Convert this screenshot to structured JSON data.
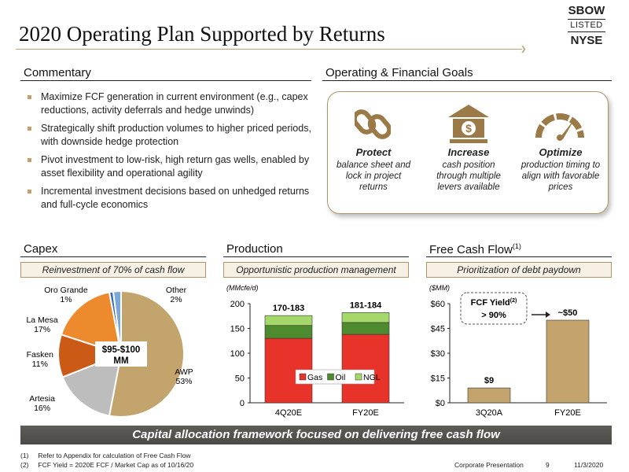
{
  "page_title": "2020 Operating Plan Supported by Returns",
  "logo": {
    "line1": "SBOW",
    "line2": "LISTED",
    "line3": "NYSE"
  },
  "commentary": {
    "heading": "Commentary",
    "bullets": [
      "Maximize FCF generation in current environment (e.g., capex reductions, activity deferrals and hedge unwinds)",
      "Strategically shift production volumes to higher priced periods, with downside hedge protection",
      "Pivot investment to low-risk, high return gas wells, enabled by asset flexibility and operational agility",
      "Incremental investment decisions based on unhedged returns and full-cycle economics"
    ]
  },
  "goals": {
    "heading": "Operating & Financial Goals",
    "items": [
      {
        "title": "Protect",
        "text": "balance sheet and lock in project returns",
        "icon": "chain-link-icon"
      },
      {
        "title": "Increase",
        "text": "cash position through multiple levers available",
        "icon": "bank-dollar-icon"
      },
      {
        "title": "Optimize",
        "text": "production timing to align with favorable prices",
        "icon": "speedometer-icon"
      }
    ]
  },
  "capex": {
    "heading": "Capex",
    "subheading": "Reinvestment of 70% of cash flow",
    "center_label_1": "$95-$100",
    "center_label_2": "MM"
  },
  "production": {
    "heading": "Production",
    "subheading": "Opportunistic production management"
  },
  "fcf": {
    "heading": "Free Cash Flow",
    "heading_sup": "(1)",
    "subheading": "Prioritization of debt paydown",
    "callout_line1": "FCF Yield",
    "callout_sup": "(2)",
    "callout_line2": "> 90%"
  },
  "chart_data": [
    {
      "type": "pie",
      "title": "Capex",
      "slices": [
        {
          "label": "AWP",
          "value": 53,
          "display": "53%",
          "color": "#c2a46c"
        },
        {
          "label": "Artesia",
          "value": 16,
          "display": "16%",
          "color": "#bdbdbd"
        },
        {
          "label": "Fasken",
          "value": 11,
          "display": "11%",
          "color": "#cc5a17"
        },
        {
          "label": "La Mesa",
          "value": 17,
          "display": "17%",
          "color": "#ee8a2e"
        },
        {
          "label": "Oro Grande",
          "value": 1,
          "display": "1%",
          "color": "#3f6bb5"
        },
        {
          "label": "Other",
          "value": 2,
          "display": "2%",
          "color": "#7aa8dc"
        }
      ]
    },
    {
      "type": "bar",
      "stacked": true,
      "title": "Production",
      "unit_label": "(MMcfe/d)",
      "categories": [
        "4Q20E",
        "FY20E"
      ],
      "series": [
        {
          "name": "Gas",
          "values": [
            130,
            138
          ],
          "color": "#e8332a"
        },
        {
          "name": "Oil",
          "values": [
            26,
            24
          ],
          "color": "#4e8a2e"
        },
        {
          "name": "NGL",
          "values": [
            20,
            20
          ],
          "color": "#a5d86a"
        }
      ],
      "totals_labels": [
        "170-183",
        "181-184"
      ],
      "ylim": [
        0,
        200
      ],
      "yticks": [
        0,
        50,
        100,
        150,
        200
      ],
      "legend": "inside-bottom"
    },
    {
      "type": "bar",
      "title": "Free Cash Flow",
      "unit_label": "($MM)",
      "categories": [
        "3Q20A",
        "FY20E"
      ],
      "values": [
        9,
        50
      ],
      "value_labels": [
        "$9",
        "~$50"
      ],
      "color": "#c2a46c",
      "ylim": [
        0,
        60
      ],
      "yticks": [
        "$0",
        "$15",
        "$30",
        "$45",
        "$60"
      ],
      "ytick_values": [
        0,
        15,
        30,
        45,
        60
      ]
    }
  ],
  "banner": "Capital allocation framework focused on delivering free cash flow",
  "footnotes": [
    {
      "num": "(1)",
      "text": "Refer to Appendix for calculation of Free Cash Flow"
    },
    {
      "num": "(2)",
      "text": "FCF Yield = 2020E FCF / Market Cap as of 10/16/20"
    }
  ],
  "footer_right": {
    "label": "Corporate Presentation",
    "page": "9",
    "date": "11/3/2020"
  }
}
